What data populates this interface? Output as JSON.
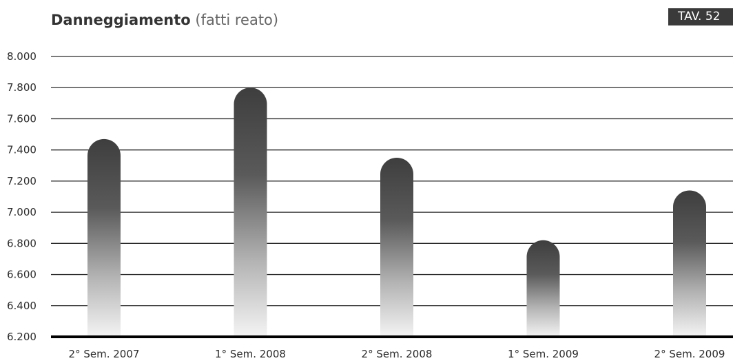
{
  "header": {
    "title_bold": "Danneggiamento",
    "title_light": "(fatti reato)",
    "badge": "TAV. 52"
  },
  "colors": {
    "bar_top": "#3e3e3e",
    "bar_bottom": "#f2f2f2",
    "gridline": "#2a2a2a",
    "badge_bg": "#3a3a3a"
  },
  "chart_data": {
    "type": "bar",
    "title": "Danneggiamento (fatti reato)",
    "categories": [
      "2° Sem. 2007",
      "1° Sem. 2008",
      "2° Sem. 2008",
      "1° Sem. 2009",
      "2° Sem. 2009"
    ],
    "values": [
      7470,
      7800,
      7350,
      6820,
      7140
    ],
    "ylim": [
      6200,
      8000
    ],
    "yticks": [
      6200,
      6400,
      6600,
      6800,
      7000,
      7200,
      7400,
      7600,
      7800,
      8000
    ],
    "ytick_labels": [
      "6.200",
      "6.400",
      "6.600",
      "6.800",
      "7.000",
      "7.200",
      "7.400",
      "7.600",
      "7.800",
      "8.000"
    ],
    "grid": true,
    "legend": "none"
  }
}
